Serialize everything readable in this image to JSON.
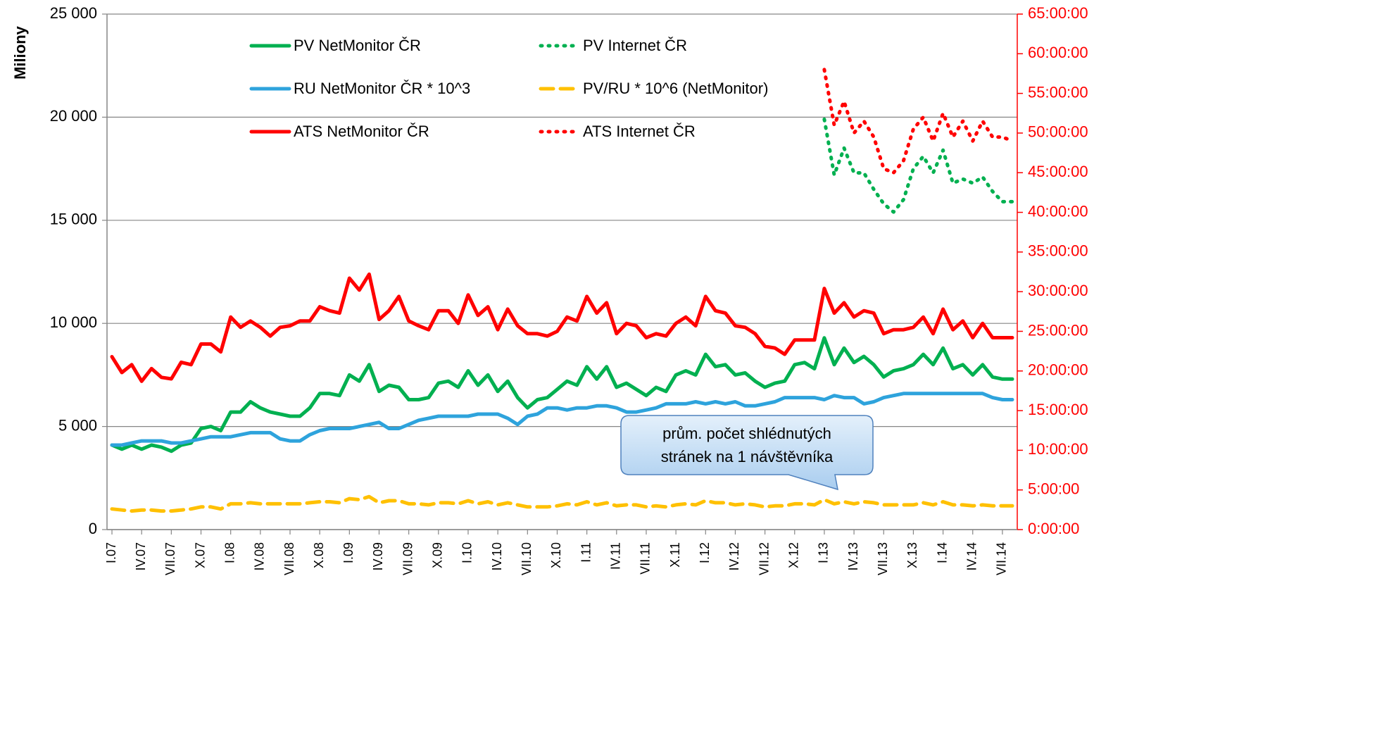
{
  "chart_data": {
    "type": "line",
    "ylabel": "Miliony",
    "ylim": [
      0,
      25000
    ],
    "yticks": [
      0,
      {
        "value": 5000,
        "label": "5 000"
      },
      {
        "value": 10000,
        "label": "10 000"
      },
      {
        "value": 15000,
        "label": "15 000"
      },
      {
        "value": 20000,
        "label": "20 000"
      },
      {
        "value": 25000,
        "label": "25 000"
      }
    ],
    "y2lim": [
      0,
      65
    ],
    "y2ticks": [
      {
        "value": 0,
        "label": "0:00:00"
      },
      {
        "value": 5,
        "label": "5:00:00"
      },
      {
        "value": 10,
        "label": "10:00:00"
      },
      {
        "value": 15,
        "label": "15:00:00"
      },
      {
        "value": 20,
        "label": "20:00:00"
      },
      {
        "value": 25,
        "label": "25:00:00"
      },
      {
        "value": 30,
        "label": "30:00:00"
      },
      {
        "value": 35,
        "label": "35:00:00"
      },
      {
        "value": 40,
        "label": "40:00:00"
      },
      {
        "value": 45,
        "label": "45:00:00"
      },
      {
        "value": 50,
        "label": "50:00:00"
      },
      {
        "value": 55,
        "label": "55:00:00"
      },
      {
        "value": 60,
        "label": "60:00:00"
      },
      {
        "value": 65,
        "label": "65:00:00"
      }
    ],
    "y2color": "#ff0000",
    "grid": true,
    "annotation": [
      "prům. počet shlédnutých",
      "stránek na 1 návštěvníka"
    ],
    "categories": [
      "I.07",
      null,
      null,
      "IV.07",
      null,
      null,
      "VII.07",
      null,
      null,
      "X.07",
      null,
      null,
      "I.08",
      null,
      null,
      "IV.08",
      null,
      null,
      "VII.08",
      null,
      null,
      "X.08",
      null,
      null,
      "I.09",
      null,
      null,
      "IV.09",
      null,
      null,
      "VII.09",
      null,
      null,
      "X.09",
      null,
      null,
      "I.10",
      null,
      null,
      "IV.10",
      null,
      null,
      "VII.10",
      null,
      null,
      "X.10",
      null,
      null,
      "I.11",
      null,
      null,
      "IV.11",
      null,
      null,
      "VII.11",
      null,
      null,
      "X.11",
      null,
      null,
      "I.12",
      null,
      null,
      "IV.12",
      null,
      null,
      "VII.12",
      null,
      null,
      "X.12",
      null,
      null,
      "I.13",
      null,
      null,
      "IV.13",
      null,
      null,
      "VII.13",
      null,
      null,
      "X.13",
      null,
      null,
      "I.14",
      null,
      null,
      "IV.14",
      null,
      null,
      "VII.14",
      null
    ],
    "series": [
      {
        "name": "PV NetMonitor ČR",
        "color": "#00b050",
        "line_style": "solid",
        "values": [
          4100,
          3900,
          4100,
          3900,
          4100,
          4000,
          3800,
          4100,
          4200,
          4900,
          5000,
          4800,
          5700,
          5700,
          6200,
          5900,
          5700,
          5600,
          5500,
          5500,
          5900,
          6600,
          6600,
          6500,
          7500,
          7200,
          8000,
          6700,
          7000,
          6900,
          6300,
          6300,
          6400,
          7100,
          7200,
          6900,
          7700,
          7000,
          7500,
          6700,
          7200,
          6400,
          5900,
          6300,
          6400,
          6800,
          7200,
          7000,
          7900,
          7300,
          7900,
          6900,
          7100,
          6800,
          6500,
          6900,
          6700,
          7500,
          7700,
          7500,
          8500,
          7900,
          8000,
          7500,
          7600,
          7200,
          6900,
          7100,
          7200,
          8000,
          8100,
          7800,
          9300,
          8000,
          8800,
          8100,
          8400,
          8000,
          7400,
          7700,
          7800,
          8000,
          8500,
          8000,
          8800,
          7800,
          8000,
          7500,
          8000,
          7400,
          7300,
          7300
        ]
      },
      {
        "name": "PV Internet ČR",
        "color": "#00b050",
        "line_style": "dotted",
        "values": [
          null,
          null,
          null,
          null,
          null,
          null,
          null,
          null,
          null,
          null,
          null,
          null,
          null,
          null,
          null,
          null,
          null,
          null,
          null,
          null,
          null,
          null,
          null,
          null,
          null,
          null,
          null,
          null,
          null,
          null,
          null,
          null,
          null,
          null,
          null,
          null,
          null,
          null,
          null,
          null,
          null,
          null,
          null,
          null,
          null,
          null,
          null,
          null,
          null,
          null,
          null,
          null,
          null,
          null,
          null,
          null,
          null,
          null,
          null,
          null,
          null,
          null,
          null,
          null,
          null,
          null,
          null,
          null,
          null,
          null,
          null,
          null,
          19900,
          17200,
          18500,
          17300,
          17300,
          16500,
          15800,
          15400,
          16000,
          17500,
          18100,
          17300,
          18400,
          16800,
          17000,
          16800,
          17100,
          16400,
          15900,
          15900
        ]
      },
      {
        "name": "RU NetMonitor ČR * 10^3",
        "color": "#2ea3dc",
        "line_style": "solid",
        "values": [
          4100,
          4100,
          4200,
          4300,
          4300,
          4300,
          4200,
          4200,
          4300,
          4400,
          4500,
          4500,
          4500,
          4600,
          4700,
          4700,
          4700,
          4400,
          4300,
          4300,
          4600,
          4800,
          4900,
          4900,
          4900,
          5000,
          5100,
          5200,
          4900,
          4900,
          5100,
          5300,
          5400,
          5500,
          5500,
          5500,
          5500,
          5600,
          5600,
          5600,
          5400,
          5100,
          5500,
          5600,
          5900,
          5900,
          5800,
          5900,
          5900,
          6000,
          6000,
          5900,
          5700,
          5700,
          5800,
          5900,
          6100,
          6100,
          6100,
          6200,
          6100,
          6200,
          6100,
          6200,
          6000,
          6000,
          6100,
          6200,
          6400,
          6400,
          6400,
          6400,
          6300,
          6500,
          6400,
          6400,
          6100,
          6200,
          6400,
          6500,
          6600,
          6600,
          6600,
          6600,
          6600,
          6600,
          6600,
          6600,
          6600,
          6400,
          6300,
          6300
        ]
      },
      {
        "name": "PV/RU * 10^6 (NetMonitor)",
        "color": "#ffc000",
        "line_style": "dashed",
        "values": [
          1000,
          950,
          900,
          950,
          950,
          900,
          900,
          950,
          1000,
          1100,
          1100,
          1000,
          1250,
          1250,
          1300,
          1250,
          1250,
          1250,
          1250,
          1250,
          1300,
          1350,
          1350,
          1300,
          1500,
          1450,
          1600,
          1300,
          1400,
          1400,
          1250,
          1250,
          1200,
          1300,
          1300,
          1250,
          1400,
          1250,
          1350,
          1200,
          1300,
          1200,
          1100,
          1100,
          1100,
          1150,
          1250,
          1200,
          1350,
          1200,
          1300,
          1150,
          1200,
          1200,
          1100,
          1150,
          1100,
          1200,
          1250,
          1200,
          1400,
          1300,
          1300,
          1200,
          1250,
          1200,
          1100,
          1150,
          1150,
          1250,
          1250,
          1200,
          1450,
          1250,
          1350,
          1250,
          1350,
          1300,
          1200,
          1200,
          1200,
          1200,
          1300,
          1200,
          1350,
          1200,
          1200,
          1150,
          1200,
          1150,
          1150,
          1150
        ]
      },
      {
        "name": "ATS NetMonitor ČR",
        "color": "#ff0000",
        "line_style": "solid",
        "axis": "y2",
        "values": [
          21.8,
          19.8,
          20.8,
          18.7,
          20.3,
          19.2,
          19.0,
          21.1,
          20.8,
          23.4,
          23.4,
          22.4,
          26.8,
          25.5,
          26.3,
          25.5,
          24.4,
          25.5,
          25.7,
          26.3,
          26.3,
          28.1,
          27.6,
          27.3,
          31.7,
          30.2,
          32.2,
          26.5,
          27.6,
          29.4,
          26.3,
          25.7,
          25.2,
          27.6,
          27.6,
          26.0,
          29.6,
          27.0,
          28.1,
          25.2,
          27.8,
          25.7,
          24.7,
          24.7,
          24.4,
          25.0,
          26.8,
          26.3,
          29.4,
          27.3,
          28.6,
          24.7,
          26.0,
          25.7,
          24.2,
          24.7,
          24.4,
          26.0,
          26.8,
          25.7,
          29.4,
          27.6,
          27.3,
          25.7,
          25.5,
          24.7,
          23.1,
          22.9,
          22.1,
          23.9,
          23.9,
          23.9,
          30.4,
          27.3,
          28.6,
          26.8,
          27.6,
          27.3,
          24.7,
          25.2,
          25.2,
          25.5,
          26.8,
          24.7,
          27.8,
          25.2,
          26.3,
          24.2,
          26.0,
          24.2,
          24.2,
          24.2
        ]
      },
      {
        "name": "ATS Internet ČR",
        "color": "#ff0000",
        "line_style": "dotted",
        "axis": "y2",
        "values": [
          null,
          null,
          null,
          null,
          null,
          null,
          null,
          null,
          null,
          null,
          null,
          null,
          null,
          null,
          null,
          null,
          null,
          null,
          null,
          null,
          null,
          null,
          null,
          null,
          null,
          null,
          null,
          null,
          null,
          null,
          null,
          null,
          null,
          null,
          null,
          null,
          null,
          null,
          null,
          null,
          null,
          null,
          null,
          null,
          null,
          null,
          null,
          null,
          null,
          null,
          null,
          null,
          null,
          null,
          null,
          null,
          null,
          null,
          null,
          null,
          null,
          null,
          null,
          null,
          null,
          null,
          null,
          null,
          null,
          null,
          null,
          null,
          58,
          51,
          54,
          50,
          51.5,
          49.5,
          45.5,
          45,
          46.5,
          50.5,
          52,
          49,
          52.5,
          49.5,
          51.5,
          49,
          51.5,
          49.5,
          49.5,
          49
        ]
      }
    ]
  }
}
